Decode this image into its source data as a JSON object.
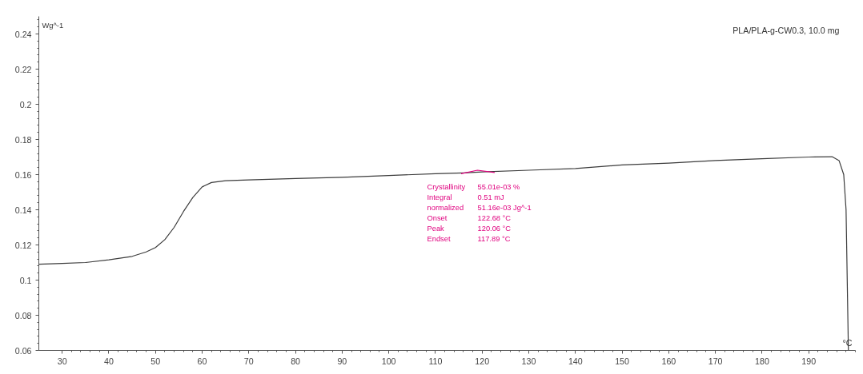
{
  "chart_data": {
    "type": "line",
    "title": "PLA/PLA-g-CW0.3, 10.0 mg",
    "xlabel": "°C",
    "ylabel": "Wg^-1",
    "xlim": [
      25,
      200
    ],
    "ylim": [
      0.06,
      0.25
    ],
    "xticks": [
      30,
      40,
      50,
      60,
      70,
      80,
      90,
      100,
      110,
      120,
      130,
      140,
      150,
      160,
      170,
      180,
      190
    ],
    "yticks": [
      0.06,
      0.08,
      0.1,
      0.12,
      0.14,
      0.16,
      0.18,
      0.2,
      0.22,
      0.24
    ],
    "grid": false,
    "marker": "none",
    "line_style": "solid",
    "series": [
      {
        "color": "#3c3c3c",
        "x": [
          25,
          30,
          35,
          40,
          45,
          48,
          50,
          52,
          54,
          56,
          58,
          60,
          62,
          65,
          70,
          80,
          90,
          100,
          110,
          116,
          120,
          130,
          140,
          150,
          160,
          170,
          180,
          190,
          195,
          196.5,
          197.5,
          198,
          198.5
        ],
        "values": [
          0.109,
          0.1095,
          0.11,
          0.1115,
          0.1135,
          0.116,
          0.1185,
          0.123,
          0.13,
          0.139,
          0.147,
          0.153,
          0.1555,
          0.1565,
          0.157,
          0.1578,
          0.1585,
          0.1595,
          0.1605,
          0.161,
          0.1615,
          0.1625,
          0.1635,
          0.1655,
          0.1665,
          0.168,
          0.169,
          0.17,
          0.1702,
          0.168,
          0.16,
          0.14,
          0.06
        ]
      },
      {
        "color": "#e0007f",
        "x": [
          115.5,
          119,
          122.7
        ],
        "values": [
          0.1605,
          0.1625,
          0.1612
        ]
      }
    ],
    "annotations": [
      "Crystallinity",
      "55.01e-03 %",
      "Integral",
      "0.51 mJ",
      "  normalized",
      "51.16e-03 Jg^-1",
      "Onset",
      "122.68 °C",
      "Peak",
      "120.06 °C",
      "Endset",
      "117.89 °C"
    ]
  }
}
